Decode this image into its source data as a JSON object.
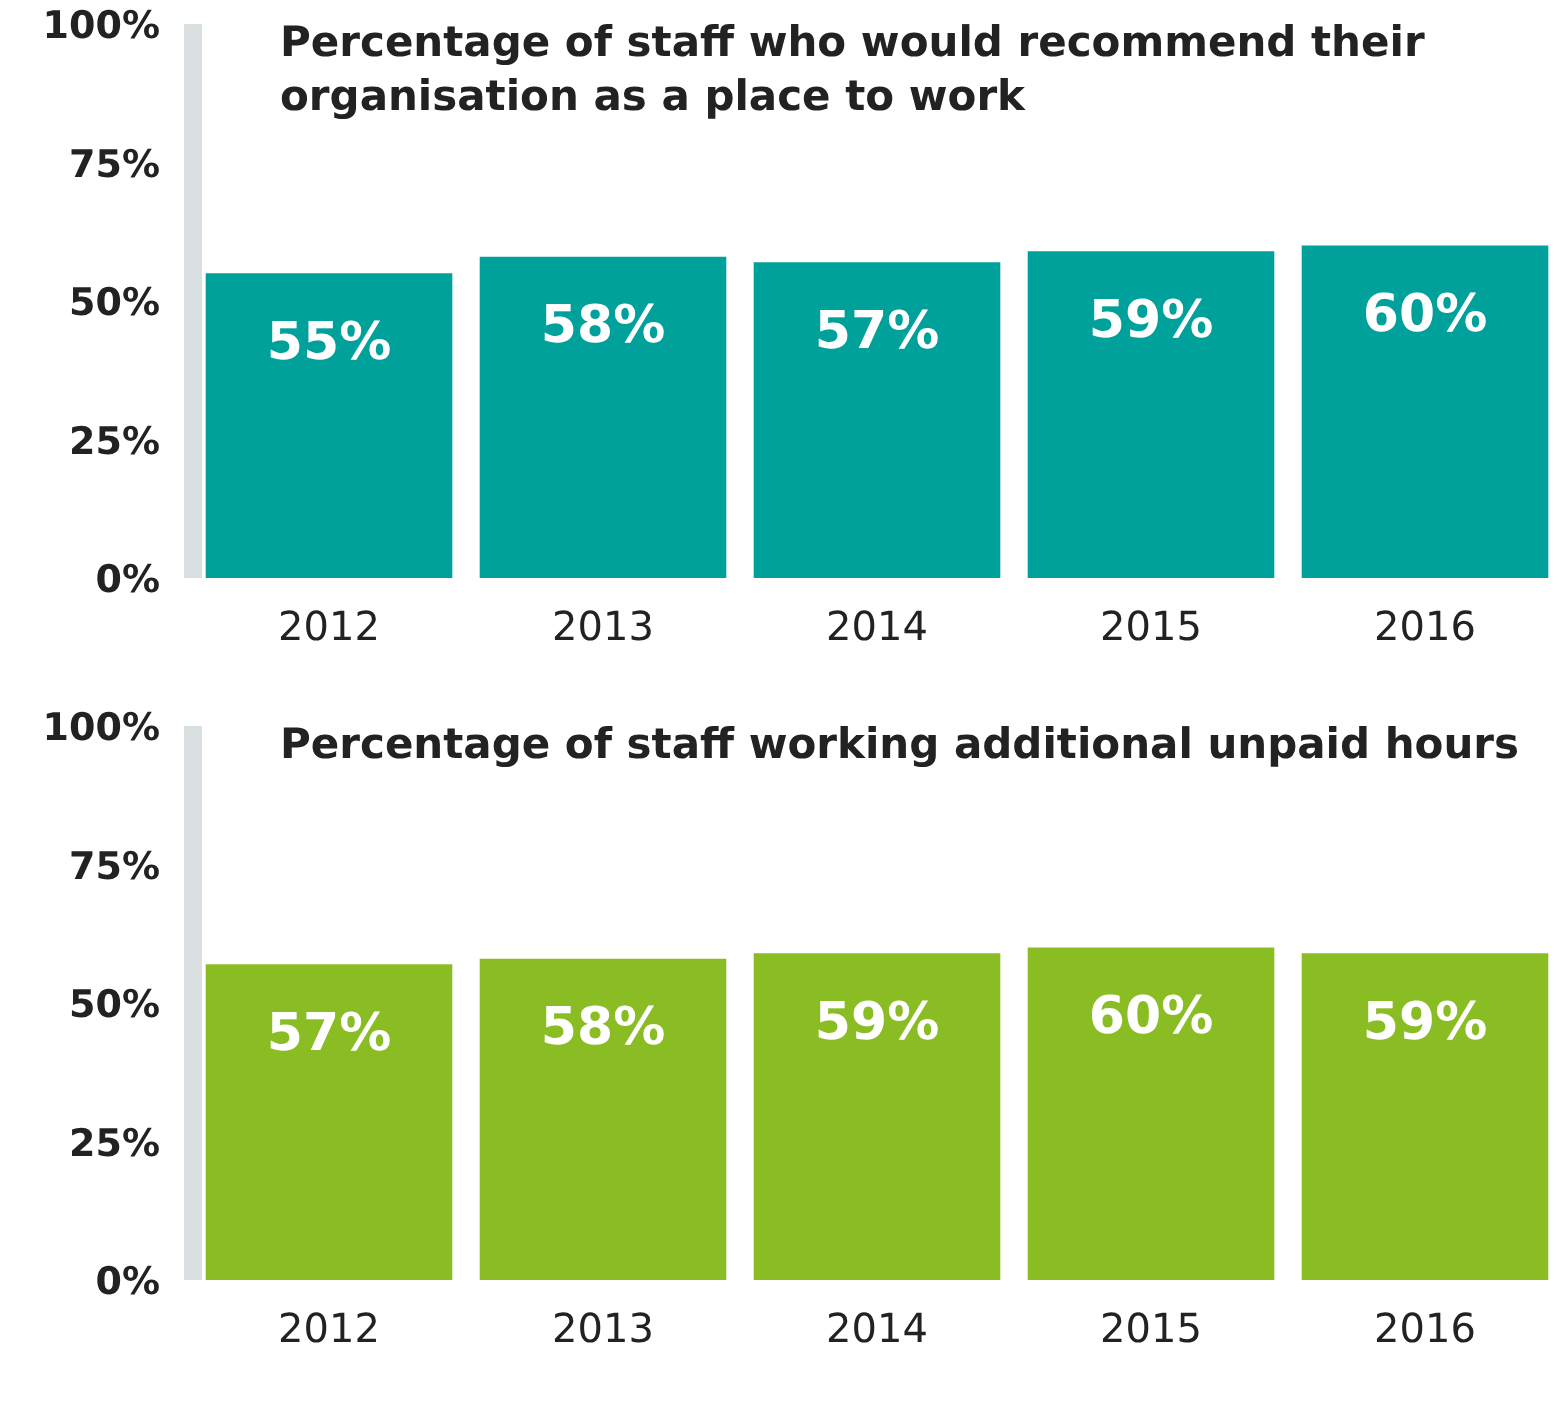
{
  "chart_data": [
    {
      "type": "bar",
      "title": "Percentage of staff who would recommend their organisation as a place to work",
      "categories": [
        "2012",
        "2013",
        "2014",
        "2015",
        "2016"
      ],
      "values": [
        55,
        58,
        57,
        59,
        60
      ],
      "color": "#00a19a",
      "ylim": [
        0,
        100
      ],
      "yticks": [
        {
          "value": 0,
          "label": "0%"
        },
        {
          "value": 25,
          "label": "25%"
        },
        {
          "value": 50,
          "label": "50%"
        },
        {
          "value": 75,
          "label": "75%"
        },
        {
          "value": 100,
          "label": "100%"
        }
      ],
      "value_labels": [
        "55%",
        "58%",
        "57%",
        "59%",
        "60%"
      ],
      "grid": false,
      "legend": false
    },
    {
      "type": "bar",
      "title": "Percentage of staff working additional unpaid hours",
      "categories": [
        "2012",
        "2013",
        "2014",
        "2015",
        "2016"
      ],
      "values": [
        57,
        58,
        59,
        60,
        59
      ],
      "color": "#8abd24",
      "ylim": [
        0,
        100
      ],
      "yticks": [
        {
          "value": 0,
          "label": "0%"
        },
        {
          "value": 25,
          "label": "25%"
        },
        {
          "value": 50,
          "label": "50%"
        },
        {
          "value": 75,
          "label": "75%"
        },
        {
          "value": 100,
          "label": "100%"
        }
      ],
      "value_labels": [
        "57%",
        "58%",
        "59%",
        "60%",
        "59%"
      ],
      "grid": false,
      "legend": false
    }
  ]
}
